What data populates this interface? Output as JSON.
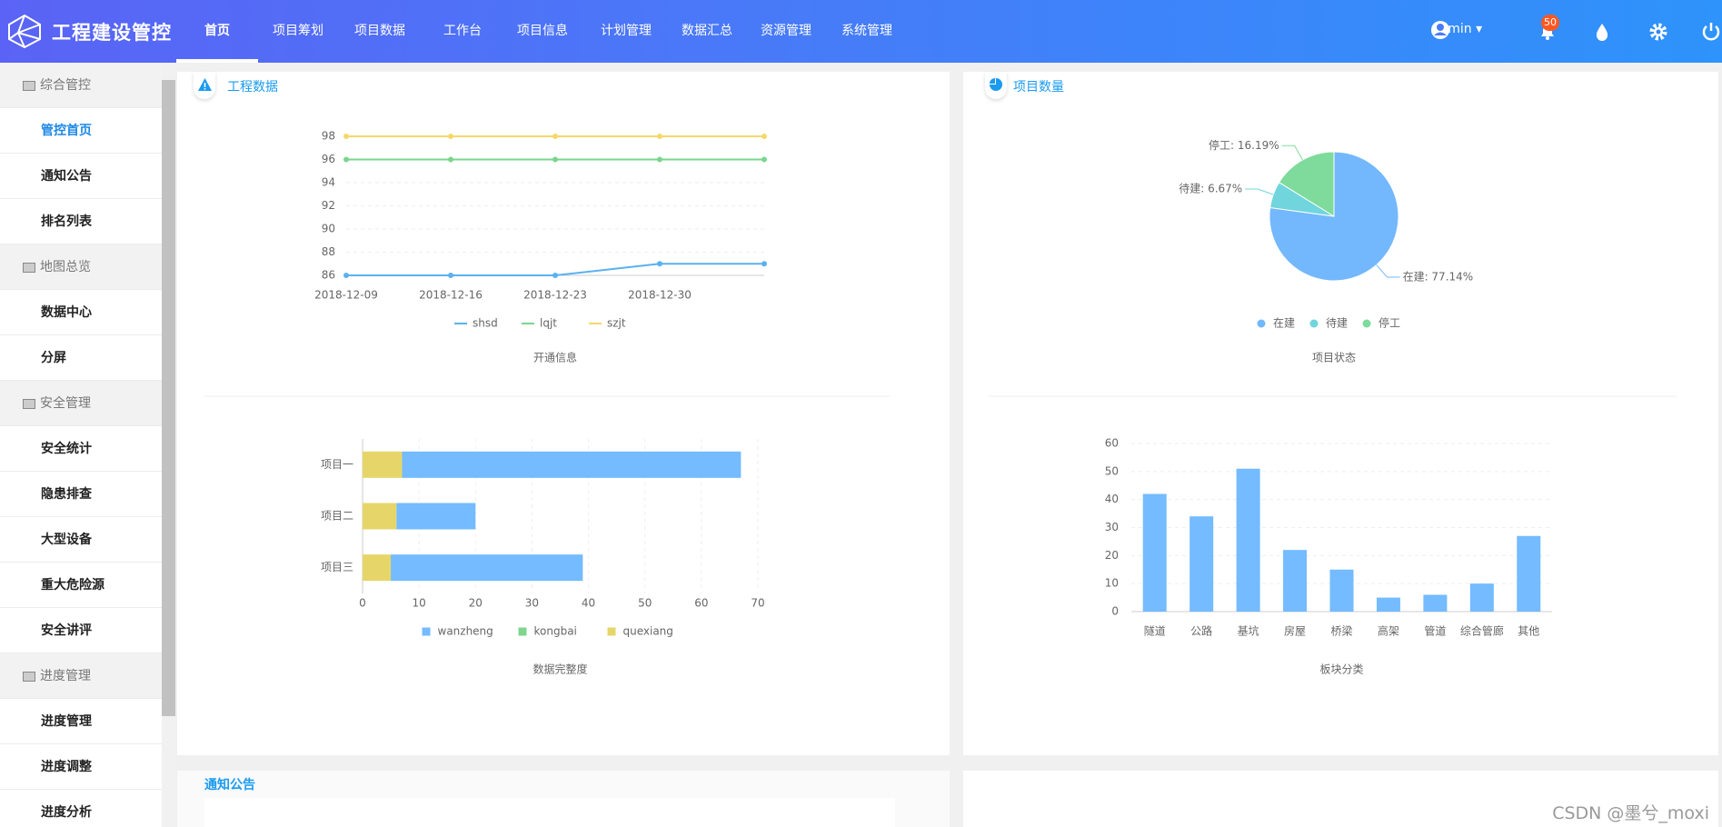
{
  "header": {
    "title": "工程建设管控",
    "nav": [
      "首页",
      "项目筹划",
      "项目数据",
      "工作台",
      "项目信息",
      "计划管理",
      "数据汇总",
      "资源管理",
      "系统管理"
    ],
    "user": "Admin",
    "badge": "50"
  },
  "sidebar": {
    "groups": [
      {
        "title": "综合管控",
        "items": [
          "管控首页",
          "通知公告",
          "排名列表"
        ]
      },
      {
        "title": "地图总览",
        "items": [
          "数据中心",
          "分屏"
        ]
      },
      {
        "title": "安全管理",
        "items": [
          "安全统计",
          "隐患排查",
          "大型设备",
          "重大危险源",
          "安全讲评"
        ]
      },
      {
        "title": "进度管理",
        "items": [
          "进度管理",
          "进度调整",
          "进度分析"
        ]
      }
    ]
  },
  "panels": {
    "left": "工程数据",
    "right": "项目数量",
    "notice": "通知公告"
  },
  "watermark": "CSDN @墨兮_moxi",
  "chart_data": [
    {
      "type": "line",
      "title": "开通信息",
      "categories": [
        "2018-12-09",
        "2018-12-16",
        "2018-12-23",
        "2018-12-30",
        null
      ],
      "series": [
        {
          "name": "shsd",
          "color": "#5ab1ef",
          "values": [
            86,
            86,
            86,
            87,
            87
          ]
        },
        {
          "name": "lqjt",
          "color": "#7ad68c",
          "values": [
            96,
            96,
            96,
            96,
            96
          ]
        },
        {
          "name": "szjt",
          "color": "#f5d86a",
          "values": [
            98,
            98,
            98,
            98,
            98
          ]
        }
      ],
      "ylim": [
        86,
        98
      ],
      "yticks": [
        86,
        88,
        90,
        92,
        94,
        96,
        98
      ],
      "grid": true,
      "legend": "bottom"
    },
    {
      "type": "pie",
      "title": "项目状态",
      "categories": [
        "在建",
        "待建",
        "停工"
      ],
      "values": [
        77.14,
        6.67,
        16.19
      ],
      "value_labels": [
        "在建: 77.14%",
        "待建: 6.67%",
        "停工: 16.19%"
      ],
      "colors": [
        "#73b8fc",
        "#70d5dd",
        "#7fdb9b"
      ],
      "legend": "bottom"
    },
    {
      "type": "bar",
      "title": "数据完整度",
      "orientation": "horizontal",
      "stacked": true,
      "categories": [
        "项目一",
        "项目二",
        "项目三"
      ],
      "series": [
        {
          "name": "wanzheng",
          "color": "#74bbff",
          "values": [
            60,
            14,
            34
          ]
        },
        {
          "name": "kongbai",
          "color": "#80d58f",
          "values": [
            0,
            0,
            0
          ]
        },
        {
          "name": "quexiang",
          "color": "#e6d66a",
          "values": [
            7,
            6,
            5
          ]
        }
      ],
      "xlim": [
        0,
        70
      ],
      "xticks": [
        0,
        10,
        20,
        30,
        40,
        50,
        60,
        70
      ],
      "grid": true,
      "legend": "bottom"
    },
    {
      "type": "bar",
      "title": "板块分类",
      "categories": [
        "隧道",
        "公路",
        "基坑",
        "房屋",
        "桥梁",
        "高架",
        "管道",
        "综合管廊",
        "其他"
      ],
      "values": [
        42,
        34,
        51,
        22,
        15,
        5,
        6,
        10,
        27
      ],
      "color": "#74bbff",
      "ylim": [
        0,
        60
      ],
      "yticks": [
        0,
        10,
        20,
        30,
        40,
        50,
        60
      ],
      "grid": true
    }
  ]
}
